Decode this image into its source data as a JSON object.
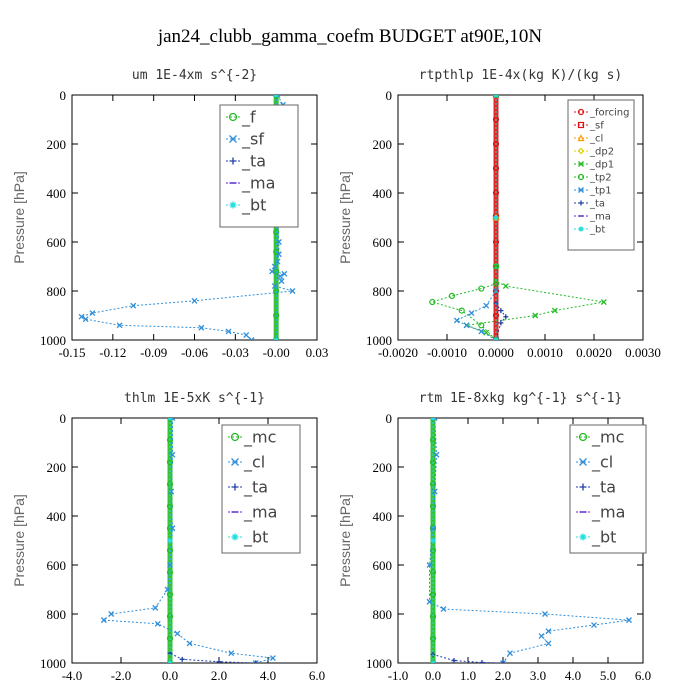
{
  "figure": {
    "title": "jan24_clubb_gamma_coefm  BUDGET at90E,10N"
  },
  "colors": {
    "green": "#22bb22",
    "blue": "#2f8fd9",
    "darkblue": "#1f3fa8",
    "purple": "#5a2bd0",
    "red": "#dd1111",
    "orange": "#ff9a00",
    "yellow": "#e0d000",
    "cyan": "#22dddd"
  },
  "chart_data": [
    {
      "type": "line",
      "title": "um   1E-4xm s^{-2}",
      "ylabel": "Pressure [hPa]",
      "xlim": [
        -0.15,
        0.03
      ],
      "ylim": [
        1000,
        0
      ],
      "xticks": [
        -0.15,
        -0.12,
        -0.09,
        -0.06,
        -0.03,
        -0.0,
        0.03
      ],
      "xtick_labels": [
        "-0.15",
        "-0.12",
        "-0.09",
        "-0.06",
        "-0.03",
        "-0.00",
        "0.03"
      ],
      "yticks": [
        0,
        200,
        400,
        600,
        800,
        1000
      ],
      "ytick_labels": [
        "0",
        "200",
        "400",
        "600",
        "800",
        "1000"
      ],
      "legend": {
        "position": "top-right",
        "font_size": 16
      },
      "series": [
        {
          "name": "_f",
          "color": "#22bb22",
          "marker": "circle",
          "x": [
            0,
            0,
            0,
            0,
            0,
            0,
            0,
            0,
            0,
            0,
            0,
            0,
            0
          ],
          "y": [
            0,
            80,
            160,
            240,
            320,
            400,
            480,
            560,
            640,
            720,
            800,
            900,
            1000
          ]
        },
        {
          "name": "_sf",
          "color": "#2f8fd9",
          "marker": "x",
          "x": [
            0.001,
            0.005,
            0.012,
            0.013,
            0.006,
            0.0,
            0.001,
            0.002,
            0.001,
            0.002,
            0.002,
            0.001,
            -0.001,
            -0.003,
            0.006,
            0.003,
            0.004,
            -0.001,
            0.012,
            -0.06,
            -0.105,
            -0.135,
            -0.143,
            -0.14,
            -0.115,
            -0.055,
            -0.035,
            -0.022,
            -0.018
          ],
          "y": [
            0,
            40,
            110,
            150,
            190,
            230,
            300,
            400,
            500,
            600,
            650,
            680,
            700,
            720,
            730,
            740,
            760,
            780,
            800,
            840,
            860,
            890,
            905,
            915,
            940,
            950,
            965,
            980,
            1000
          ]
        },
        {
          "name": "_ta",
          "color": "#1f3fa8",
          "marker": "plus",
          "x": [
            0,
            0,
            0
          ],
          "y": [
            0,
            500,
            1000
          ]
        },
        {
          "name": "_ma",
          "color": "#5a2bd0",
          "marker": "dash",
          "x": [
            0,
            0,
            0
          ],
          "y": [
            0,
            500,
            1000
          ]
        },
        {
          "name": "_bt",
          "color": "#22dddd",
          "marker": "star",
          "x": [
            0,
            0,
            0
          ],
          "y": [
            0,
            500,
            1000
          ]
        }
      ]
    },
    {
      "type": "line",
      "title": "rtpthlp   1E-4x(kg K)/(kg s)",
      "ylabel": "Pressure [hPa]",
      "xlim": [
        -0.002,
        0.003
      ],
      "ylim": [
        1000,
        0
      ],
      "xticks": [
        -0.002,
        -0.001,
        0.0,
        0.001,
        0.002,
        0.003
      ],
      "xtick_labels": [
        "-0.0020",
        "-0.0010",
        "0.0000",
        "0.0010",
        "0.0020",
        "0.0030"
      ],
      "yticks": [
        0,
        200,
        400,
        600,
        800,
        1000
      ],
      "ytick_labels": [
        "0",
        "200",
        "400",
        "600",
        "800",
        "1000"
      ],
      "legend": {
        "position": "top-right",
        "font_size": 10
      },
      "series": [
        {
          "name": "_forcing",
          "color": "#dd1111",
          "marker": "circle",
          "x": [
            0,
            0,
            0,
            0,
            0,
            0,
            0,
            0,
            0,
            0,
            0
          ],
          "y": [
            0,
            100,
            200,
            300,
            400,
            500,
            600,
            700,
            800,
            900,
            1000
          ]
        },
        {
          "name": "_sf",
          "color": "#dd1111",
          "marker": "square",
          "x": [
            0,
            0,
            0
          ],
          "y": [
            0,
            500,
            1000
          ]
        },
        {
          "name": "_cl",
          "color": "#ff9a00",
          "marker": "triangle",
          "x": [
            0,
            0,
            0
          ],
          "y": [
            0,
            500,
            1000
          ]
        },
        {
          "name": "_dp2",
          "color": "#e0d000",
          "marker": "diamond",
          "x": [
            0,
            0,
            0
          ],
          "y": [
            0,
            500,
            1000
          ]
        },
        {
          "name": "_dp1",
          "color": "#22bb22",
          "marker": "x",
          "x": [
            0,
            0,
            0,
            0.0002,
            0.0022,
            0.0012,
            0.0008,
            -0.0006,
            -0.0002,
            0
          ],
          "y": [
            0,
            700,
            760,
            780,
            845,
            880,
            900,
            940,
            970,
            1000
          ]
        },
        {
          "name": "_tp2",
          "color": "#22bb22",
          "marker": "circle",
          "x": [
            0,
            0,
            0,
            -0.0003,
            -0.0009,
            -0.0013,
            -0.0007,
            -0.0003,
            0
          ],
          "y": [
            0,
            700,
            770,
            790,
            820,
            845,
            880,
            940,
            1000
          ]
        },
        {
          "name": "_tp1",
          "color": "#2f8fd9",
          "marker": "x",
          "x": [
            0,
            0,
            -0.0002,
            -0.0005,
            -0.0008,
            -0.0006,
            -0.0003,
            0
          ],
          "y": [
            0,
            800,
            860,
            890,
            920,
            940,
            965,
            1000
          ]
        },
        {
          "name": "_ta",
          "color": "#1f3fa8",
          "marker": "plus",
          "x": [
            0,
            0,
            0.0001,
            0.0002,
            0.0001,
            0
          ],
          "y": [
            0,
            850,
            880,
            905,
            930,
            1000
          ]
        },
        {
          "name": "_ma",
          "color": "#5a2bd0",
          "marker": "dash",
          "x": [
            0,
            0,
            0
          ],
          "y": [
            0,
            500,
            1000
          ]
        },
        {
          "name": "_bt",
          "color": "#22dddd",
          "marker": "star",
          "x": [
            0,
            0,
            0
          ],
          "y": [
            0,
            500,
            1000
          ]
        }
      ]
    },
    {
      "type": "line",
      "title": "thlm   1E-5xK s^{-1}",
      "ylabel": "Pressure [hPa]",
      "xlim": [
        -4,
        6
      ],
      "ylim": [
        1000,
        0
      ],
      "xticks": [
        -4,
        -2,
        0,
        2,
        4,
        6
      ],
      "xtick_labels": [
        "-4.0",
        "-2.0",
        "0.0",
        "2.0",
        "4.0",
        "6.0"
      ],
      "yticks": [
        0,
        200,
        400,
        600,
        800,
        1000
      ],
      "ytick_labels": [
        "0",
        "200",
        "400",
        "600",
        "800",
        "1000"
      ],
      "legend": {
        "position": "top-right",
        "font_size": 16
      },
      "series": [
        {
          "name": "_mc",
          "color": "#22bb22",
          "marker": "circle",
          "x": [
            0,
            0,
            0,
            0,
            0,
            0,
            0,
            0,
            0,
            0,
            0,
            0
          ],
          "y": [
            0,
            90,
            180,
            270,
            360,
            450,
            540,
            630,
            720,
            810,
            900,
            1000
          ]
        },
        {
          "name": "_cl",
          "color": "#2f8fd9",
          "marker": "x",
          "x": [
            0.1,
            0.1,
            0.05,
            0.1,
            0.0,
            -0.1,
            -0.6,
            -2.4,
            -2.7,
            -0.5,
            0.3,
            0.8,
            2.5,
            4.2,
            3.5
          ],
          "y": [
            0,
            150,
            300,
            450,
            600,
            700,
            775,
            800,
            825,
            840,
            880,
            920,
            960,
            980,
            1000
          ]
        },
        {
          "name": "_ta",
          "color": "#1f3fa8",
          "marker": "plus",
          "x": [
            0,
            0,
            0.5,
            2.0,
            3.5
          ],
          "y": [
            0,
            960,
            985,
            995,
            1000
          ]
        },
        {
          "name": "_ma",
          "color": "#5a2bd0",
          "marker": "dash",
          "x": [
            0,
            0,
            0
          ],
          "y": [
            0,
            500,
            1000
          ]
        },
        {
          "name": "_bt",
          "color": "#22dddd",
          "marker": "star",
          "x": [
            0,
            0,
            0
          ],
          "y": [
            0,
            500,
            1000
          ]
        }
      ]
    },
    {
      "type": "line",
      "title": "rtm   1E-8xkg kg^{-1} s^{-1}",
      "ylabel": "Pressure [hPa]",
      "xlim": [
        -1,
        6
      ],
      "ylim": [
        1000,
        0
      ],
      "xticks": [
        -1,
        0,
        1,
        2,
        3,
        4,
        5,
        6
      ],
      "xtick_labels": [
        "-1.0",
        "0.0",
        "1.0",
        "2.0",
        "3.0",
        "4.0",
        "5.0",
        "6.0"
      ],
      "yticks": [
        0,
        200,
        400,
        600,
        800,
        1000
      ],
      "ytick_labels": [
        "0",
        "200",
        "400",
        "600",
        "800",
        "1000"
      ],
      "legend": {
        "position": "top-right",
        "font_size": 16
      },
      "series": [
        {
          "name": "_mc",
          "color": "#22bb22",
          "marker": "circle",
          "x": [
            0,
            0,
            0,
            0,
            0,
            0,
            0,
            0,
            0,
            0,
            0,
            0
          ],
          "y": [
            0,
            90,
            180,
            270,
            360,
            450,
            540,
            630,
            720,
            810,
            900,
            1000
          ]
        },
        {
          "name": "_cl",
          "color": "#2f8fd9",
          "marker": "x",
          "x": [
            0.05,
            0.1,
            0.05,
            0.0,
            -0.1,
            -0.1,
            0.3,
            3.2,
            5.6,
            4.6,
            3.3,
            3.1,
            3.3,
            2.2,
            2.0
          ],
          "y": [
            0,
            150,
            300,
            450,
            600,
            750,
            780,
            800,
            825,
            845,
            870,
            890,
            920,
            960,
            1000
          ]
        },
        {
          "name": "_ta",
          "color": "#1f3fa8",
          "marker": "plus",
          "x": [
            0,
            0,
            0.6,
            1.4,
            2.0
          ],
          "y": [
            0,
            965,
            990,
            998,
            1000
          ]
        },
        {
          "name": "_ma",
          "color": "#5a2bd0",
          "marker": "dash",
          "x": [
            0,
            0,
            0
          ],
          "y": [
            0,
            500,
            1000
          ]
        },
        {
          "name": "_bt",
          "color": "#22dddd",
          "marker": "star",
          "x": [
            0,
            0,
            0
          ],
          "y": [
            0,
            500,
            1000
          ]
        }
      ]
    }
  ]
}
